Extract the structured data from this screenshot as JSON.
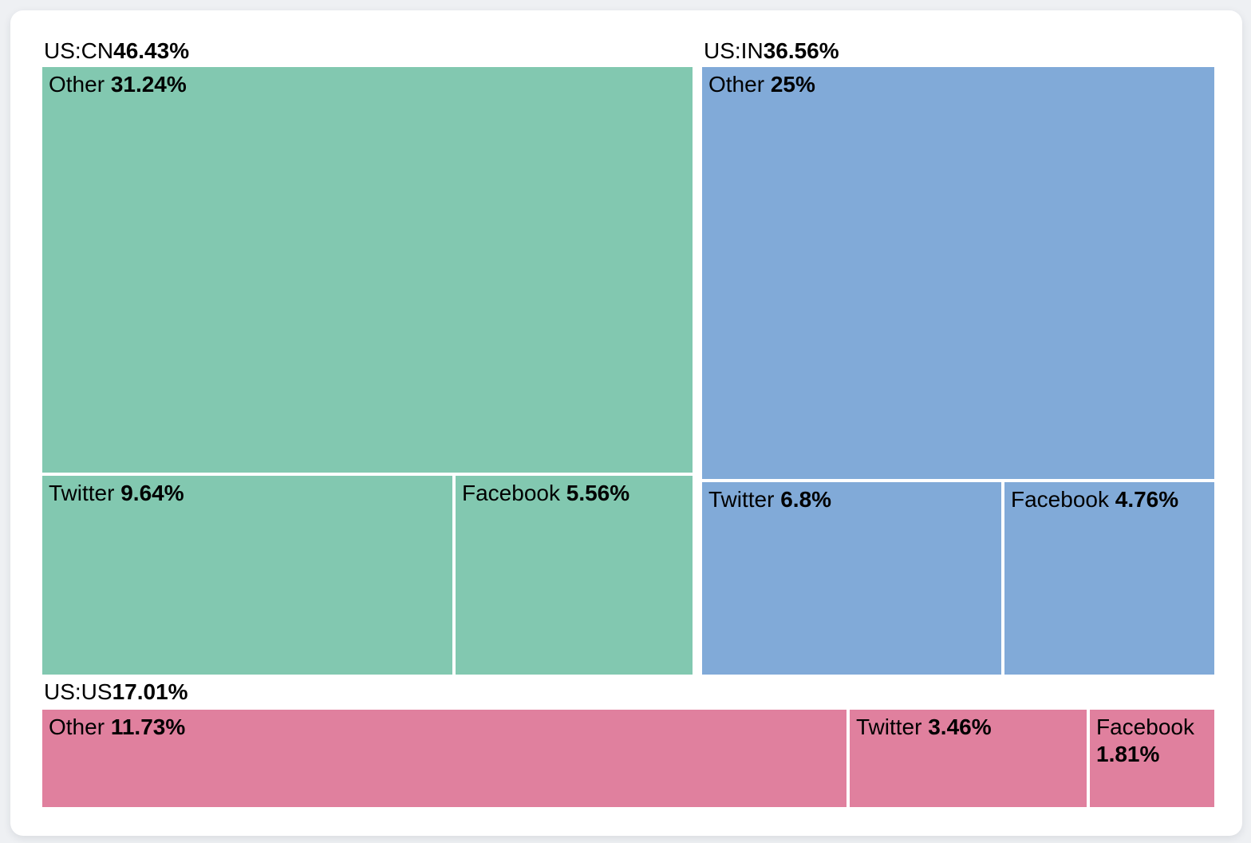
{
  "page": {
    "background_color": "#eef0f3",
    "card_color": "#ffffff",
    "text_color": "#000000"
  },
  "chart_data": {
    "type": "treemap",
    "title": "",
    "legend": "none",
    "layout_hint": "US:CN and US:IN groups side-by-side on top (Other tile above, Twitter/Facebook tiles below); US:US group is a single bottom strip of three tiles; group headers sit above each group on white background",
    "groups": [
      {
        "name": "US:CN",
        "value": 46.43,
        "display": "46.43%",
        "color": "#82C8B0",
        "children": [
          {
            "name": "Other",
            "value": 31.24,
            "display": "31.24%"
          },
          {
            "name": "Twitter",
            "value": 9.64,
            "display": "9.64%"
          },
          {
            "name": "Facebook",
            "value": 5.56,
            "display": "5.56%"
          }
        ]
      },
      {
        "name": "US:IN",
        "value": 36.56,
        "display": "36.56%",
        "color": "#81AAD8",
        "children": [
          {
            "name": "Other",
            "value": 25,
            "display": "25%"
          },
          {
            "name": "Twitter",
            "value": 6.8,
            "display": "6.8%"
          },
          {
            "name": "Facebook",
            "value": 4.76,
            "display": "4.76%"
          }
        ]
      },
      {
        "name": "US:US",
        "value": 17.01,
        "display": "17.01%",
        "color": "#E0809E",
        "children": [
          {
            "name": "Other",
            "value": 11.73,
            "display": "11.73%"
          },
          {
            "name": "Twitter",
            "value": 3.46,
            "display": "3.46%"
          },
          {
            "name": "Facebook",
            "value": 1.81,
            "display": "1.81%"
          }
        ]
      }
    ]
  }
}
